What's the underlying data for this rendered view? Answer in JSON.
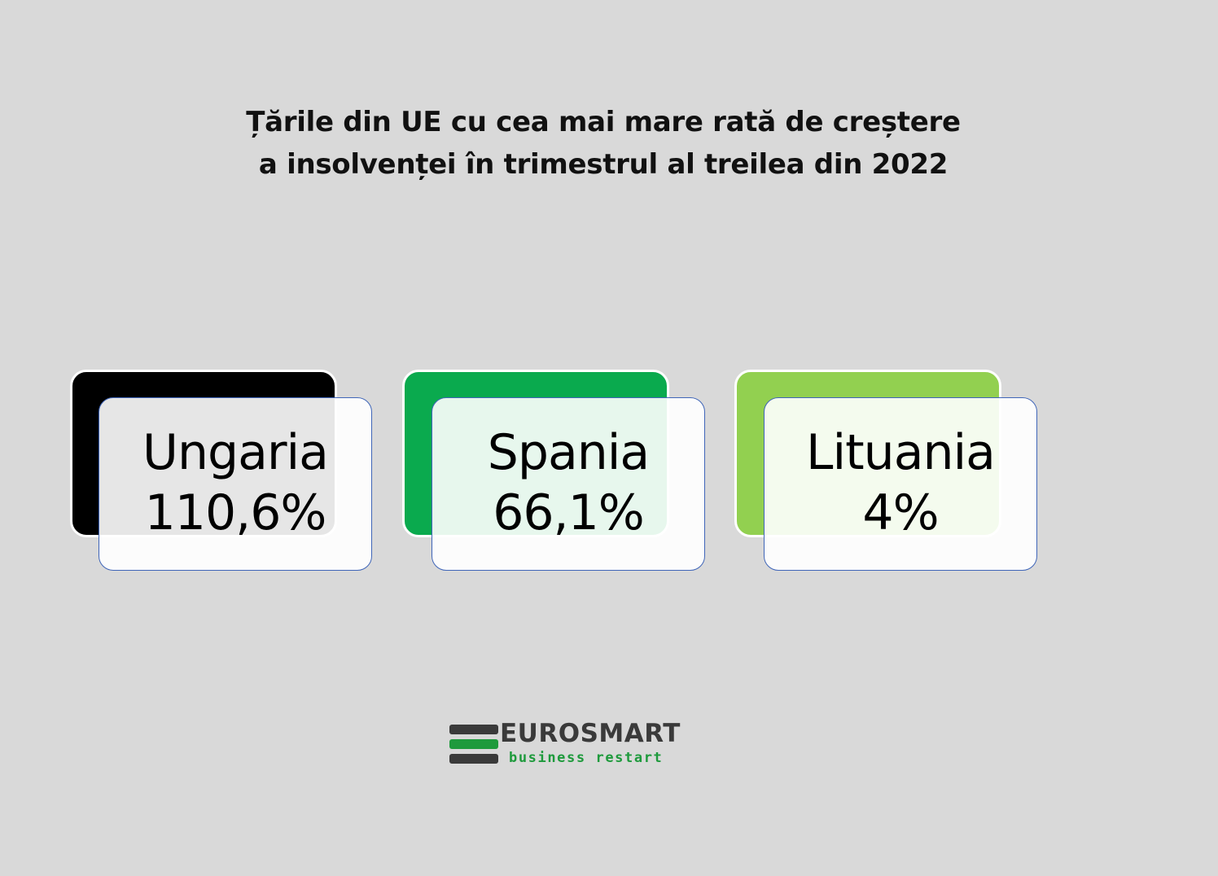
{
  "title": {
    "line1": "Țările din UE cu cea mai mare rată de creștere",
    "line2": "a insolvenței în trimestrul al treilea din 2022"
  },
  "cards": [
    {
      "country": "Ungaria",
      "value": "110,6%",
      "accent_color": "#000000"
    },
    {
      "country": "Spania",
      "value": "66,1%",
      "accent_color": "#0aaa4e"
    },
    {
      "country": "Lituania",
      "value": "4%",
      "accent_color": "#92d050"
    }
  ],
  "logo": {
    "name": "EUROSMART",
    "tagline": "business restart",
    "dark_color": "#3a3a3a",
    "green_color": "#1e9a3c"
  },
  "colors": {
    "background": "#d9d9d9",
    "card_border": "#3f65b8"
  }
}
